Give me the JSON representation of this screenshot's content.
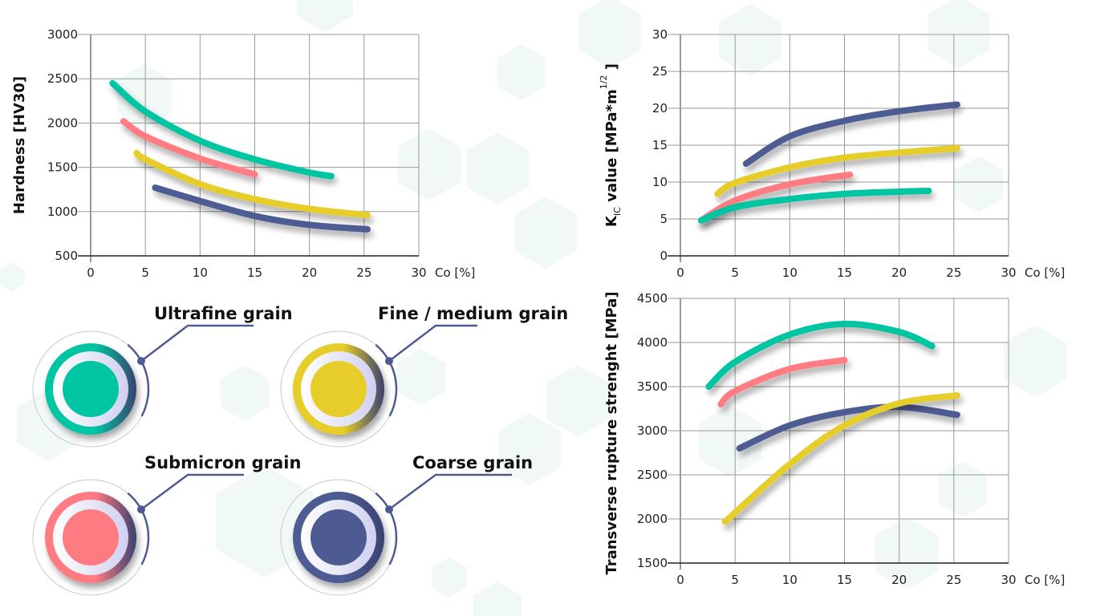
{
  "colors": {
    "ultrafine": "#00c5a2",
    "fine": "#e6cd2a",
    "submicron": "#ff7b82",
    "coarse": "#4e5b92",
    "grid": "#9a9a9a",
    "hex": "#eef7f5"
  },
  "legend": [
    {
      "label": "Ultrafine grain",
      "key": "ultrafine"
    },
    {
      "label": "Fine / medium grain",
      "key": "fine"
    },
    {
      "label": "Submicron grain",
      "key": "submicron"
    },
    {
      "label": "Coarse grain",
      "key": "coarse"
    }
  ],
  "chart_data": [
    {
      "type": "line",
      "ylabel": "Hardness [HV30]",
      "xlabel": "Co [%]",
      "xlim": [
        0,
        30
      ],
      "ylim": [
        500,
        3000
      ],
      "grid": true,
      "xticks": [
        "0",
        "5",
        "10",
        "15",
        "20",
        "25",
        "30"
      ],
      "yticks": [
        "500",
        "1000",
        "1500",
        "2000",
        "2500",
        "3000"
      ],
      "series": [
        {
          "name": "Ultrafine grain",
          "color": "#00c5a2",
          "points": [
            [
              2,
              2450
            ],
            [
              5,
              2130
            ],
            [
              10,
              1800
            ],
            [
              15,
              1590
            ],
            [
              20,
              1440
            ],
            [
              22,
              1400
            ]
          ]
        },
        {
          "name": "Submicron grain",
          "color": "#ff7b82",
          "points": [
            [
              3,
              2020
            ],
            [
              5,
              1850
            ],
            [
              10,
              1600
            ],
            [
              15,
              1420
            ]
          ]
        },
        {
          "name": "Fine / medium grain",
          "color": "#e6cd2a",
          "points": [
            [
              4.2,
              1660
            ],
            [
              5,
              1590
            ],
            [
              10,
              1310
            ],
            [
              15,
              1140
            ],
            [
              20,
              1030
            ],
            [
              25.3,
              960
            ]
          ]
        },
        {
          "name": "Coarse grain",
          "color": "#4e5b92",
          "points": [
            [
              5.9,
              1270
            ],
            [
              10,
              1120
            ],
            [
              15,
              950
            ],
            [
              20,
              850
            ],
            [
              25.3,
              800
            ]
          ]
        }
      ]
    },
    {
      "type": "line",
      "ylabel_parts": [
        {
          "t": "K"
        },
        {
          "t": "IC",
          "sub": true
        },
        {
          "t": " value [MPa*m"
        },
        {
          "t": "1/2",
          "sup": true
        },
        {
          "t": " ]"
        }
      ],
      "xlabel": "Co [%]",
      "xlim": [
        0,
        30
      ],
      "ylim": [
        0,
        30
      ],
      "grid": true,
      "xticks": [
        "0",
        "5",
        "10",
        "15",
        "20",
        "25",
        "30"
      ],
      "yticks": [
        "0",
        "5",
        "10",
        "15",
        "20",
        "25",
        "30"
      ],
      "series": [
        {
          "name": "Coarse grain",
          "color": "#4e5b92",
          "points": [
            [
              6,
              12.5
            ],
            [
              10,
              16.2
            ],
            [
              15,
              18.3
            ],
            [
              20,
              19.6
            ],
            [
              25.3,
              20.5
            ]
          ]
        },
        {
          "name": "Fine / medium grain",
          "color": "#e6cd2a",
          "points": [
            [
              3.4,
              8.4
            ],
            [
              5,
              9.9
            ],
            [
              10,
              12
            ],
            [
              15,
              13.3
            ],
            [
              20,
              14
            ],
            [
              25.3,
              14.6
            ]
          ]
        },
        {
          "name": "Submicron grain",
          "color": "#ff7b82",
          "points": [
            [
              1.9,
              4.8
            ],
            [
              5,
              7.5
            ],
            [
              10,
              9.7
            ],
            [
              15.5,
              11.0
            ]
          ]
        },
        {
          "name": "Ultrafine grain",
          "color": "#00c5a2",
          "points": [
            [
              1.9,
              4.8
            ],
            [
              5,
              6.6
            ],
            [
              10,
              7.7
            ],
            [
              15,
              8.4
            ],
            [
              20,
              8.7
            ],
            [
              22.7,
              8.8
            ]
          ]
        }
      ]
    },
    {
      "type": "line",
      "ylabel": "Transverse rupture strenght [MPa]",
      "xlabel": "Co [%]",
      "xlim": [
        0,
        30
      ],
      "ylim": [
        1500,
        4500
      ],
      "grid": true,
      "xticks": [
        "0",
        "5",
        "10",
        "15",
        "20",
        "25",
        "30"
      ],
      "yticks": [
        "1500",
        "2000",
        "2500",
        "3000",
        "3500",
        "4000",
        "4500"
      ],
      "series": [
        {
          "name": "Ultrafine grain",
          "color": "#00c5a2",
          "points": [
            [
              2.6,
              3500
            ],
            [
              5,
              3780
            ],
            [
              10,
              4090
            ],
            [
              15,
              4210
            ],
            [
              20,
              4120
            ],
            [
              23,
              3960
            ]
          ]
        },
        {
          "name": "Submicron grain",
          "color": "#ff7b82",
          "points": [
            [
              3.7,
              3300
            ],
            [
              5,
              3450
            ],
            [
              10,
              3700
            ],
            [
              15,
              3800
            ]
          ]
        },
        {
          "name": "Coarse grain",
          "color": "#4e5b92",
          "points": [
            [
              5.4,
              2800
            ],
            [
              10,
              3060
            ],
            [
              15,
              3210
            ],
            [
              20,
              3270
            ],
            [
              25.3,
              3180
            ]
          ]
        },
        {
          "name": "Fine / medium grain",
          "color": "#e6cd2a",
          "points": [
            [
              4.1,
              1970
            ],
            [
              10,
              2620
            ],
            [
              15,
              3060
            ],
            [
              20,
              3310
            ],
            [
              25.3,
              3400
            ]
          ]
        }
      ]
    }
  ]
}
